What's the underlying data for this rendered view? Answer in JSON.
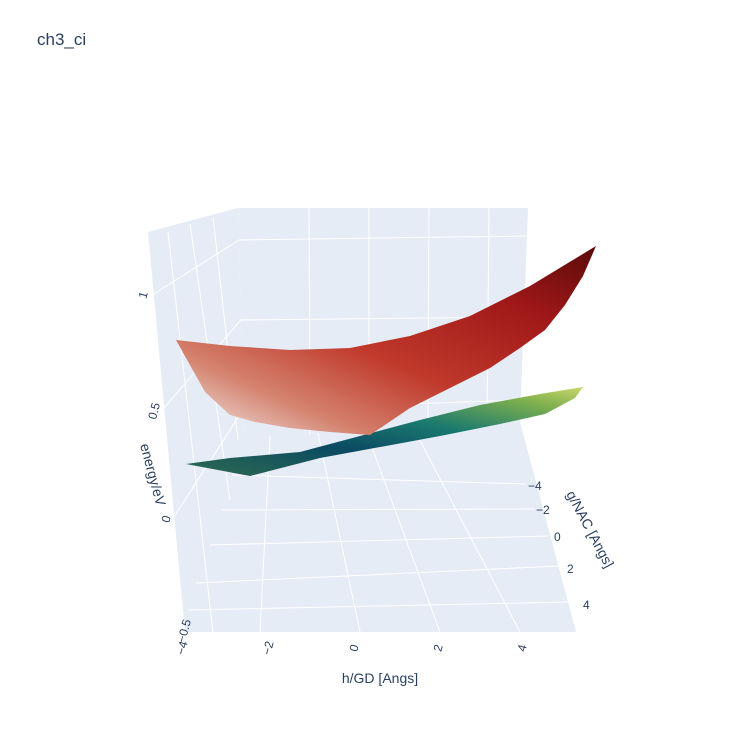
{
  "chart_data": {
    "type": "surface",
    "title": "ch3_ci",
    "xlabel": "h/GD [Angs]",
    "ylabel": "g/NAC [Angs]",
    "zlabel": "energy/eV",
    "x_ticks": [
      "−4",
      "−2",
      "0",
      "2",
      "4"
    ],
    "y_ticks": [
      "−4",
      "−2",
      "0",
      "2",
      "4"
    ],
    "z_ticks": [
      "−0.5",
      "0",
      "0.5",
      "1"
    ],
    "xlim": [
      -4,
      5
    ],
    "ylim": [
      -5,
      5
    ],
    "zlim": [
      -0.65,
      1.25
    ],
    "grid": true,
    "series": [
      {
        "surface": "upper",
        "colorscale": [
          "#f2f2f2",
          "#c0392b",
          "#a01818",
          "#5a0a0a"
        ],
        "corner_energies": {
          "x-4_y-5": 0.82,
          "x5_y-5": 1.17,
          "x-4_y5": 0.52,
          "x5_y5": 0.73
        },
        "minimum": {
          "x": 0,
          "y": 0,
          "energy": 0.55
        }
      },
      {
        "surface": "lower",
        "colorscale": [
          "#0b3d5c",
          "#1a7a6e",
          "#6fae4b",
          "#c9d86a"
        ],
        "corner_energies": {
          "x-4_y-5": 0.21,
          "x5_y-5": 0.55,
          "x-4_y5": 0.15,
          "x5_y5": 0.36
        },
        "minimum": {
          "x": -2,
          "y": 3,
          "energy": 0.12
        }
      }
    ]
  },
  "colors": {
    "pane": "#e5ecf6",
    "grid": "#ffffff",
    "text": "#2a3f5f"
  }
}
